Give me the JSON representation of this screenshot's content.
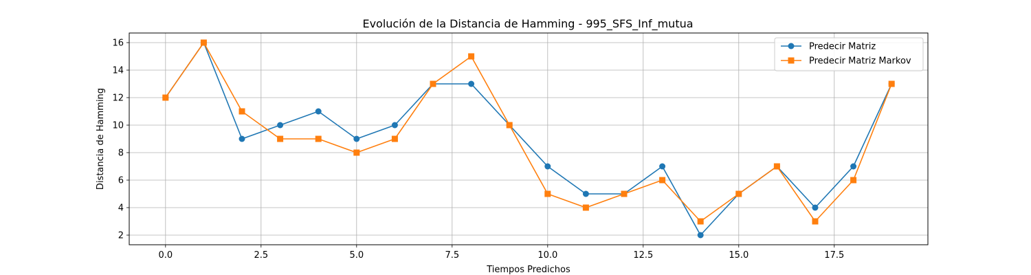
{
  "chart_data": {
    "type": "line",
    "title": "Evolución de la Distancia de Hamming - 995_SFS_Inf_mutua",
    "xlabel": "Tiempos Predichos",
    "ylabel": "Distancia de Hamming",
    "x": [
      0,
      1,
      2,
      3,
      4,
      5,
      6,
      7,
      8,
      9,
      10,
      11,
      12,
      13,
      14,
      15,
      16,
      17,
      18,
      19
    ],
    "series": [
      {
        "name": "Predecir Matriz",
        "color": "#1f77b4",
        "marker": "circle",
        "values": [
          12,
          16,
          9,
          10,
          11,
          9,
          10,
          13,
          13,
          10,
          7,
          5,
          5,
          7,
          2,
          5,
          7,
          4,
          7,
          13
        ]
      },
      {
        "name": "Predecir Matriz Markov",
        "color": "#ff7f0e",
        "marker": "square",
        "values": [
          12,
          16,
          11,
          9,
          9,
          8,
          9,
          13,
          15,
          10,
          5,
          4,
          5,
          6,
          3,
          5,
          7,
          3,
          6,
          13
        ]
      }
    ],
    "xlim": [
      -0.95,
      19.95
    ],
    "ylim": [
      1.3,
      16.7
    ],
    "xticks": [
      "0.0",
      "2.5",
      "5.0",
      "7.5",
      "10.0",
      "12.5",
      "15.0",
      "17.5"
    ],
    "yticks": [
      "2",
      "4",
      "6",
      "8",
      "10",
      "12",
      "14",
      "16"
    ],
    "grid": true,
    "legend_position": "upper right"
  }
}
